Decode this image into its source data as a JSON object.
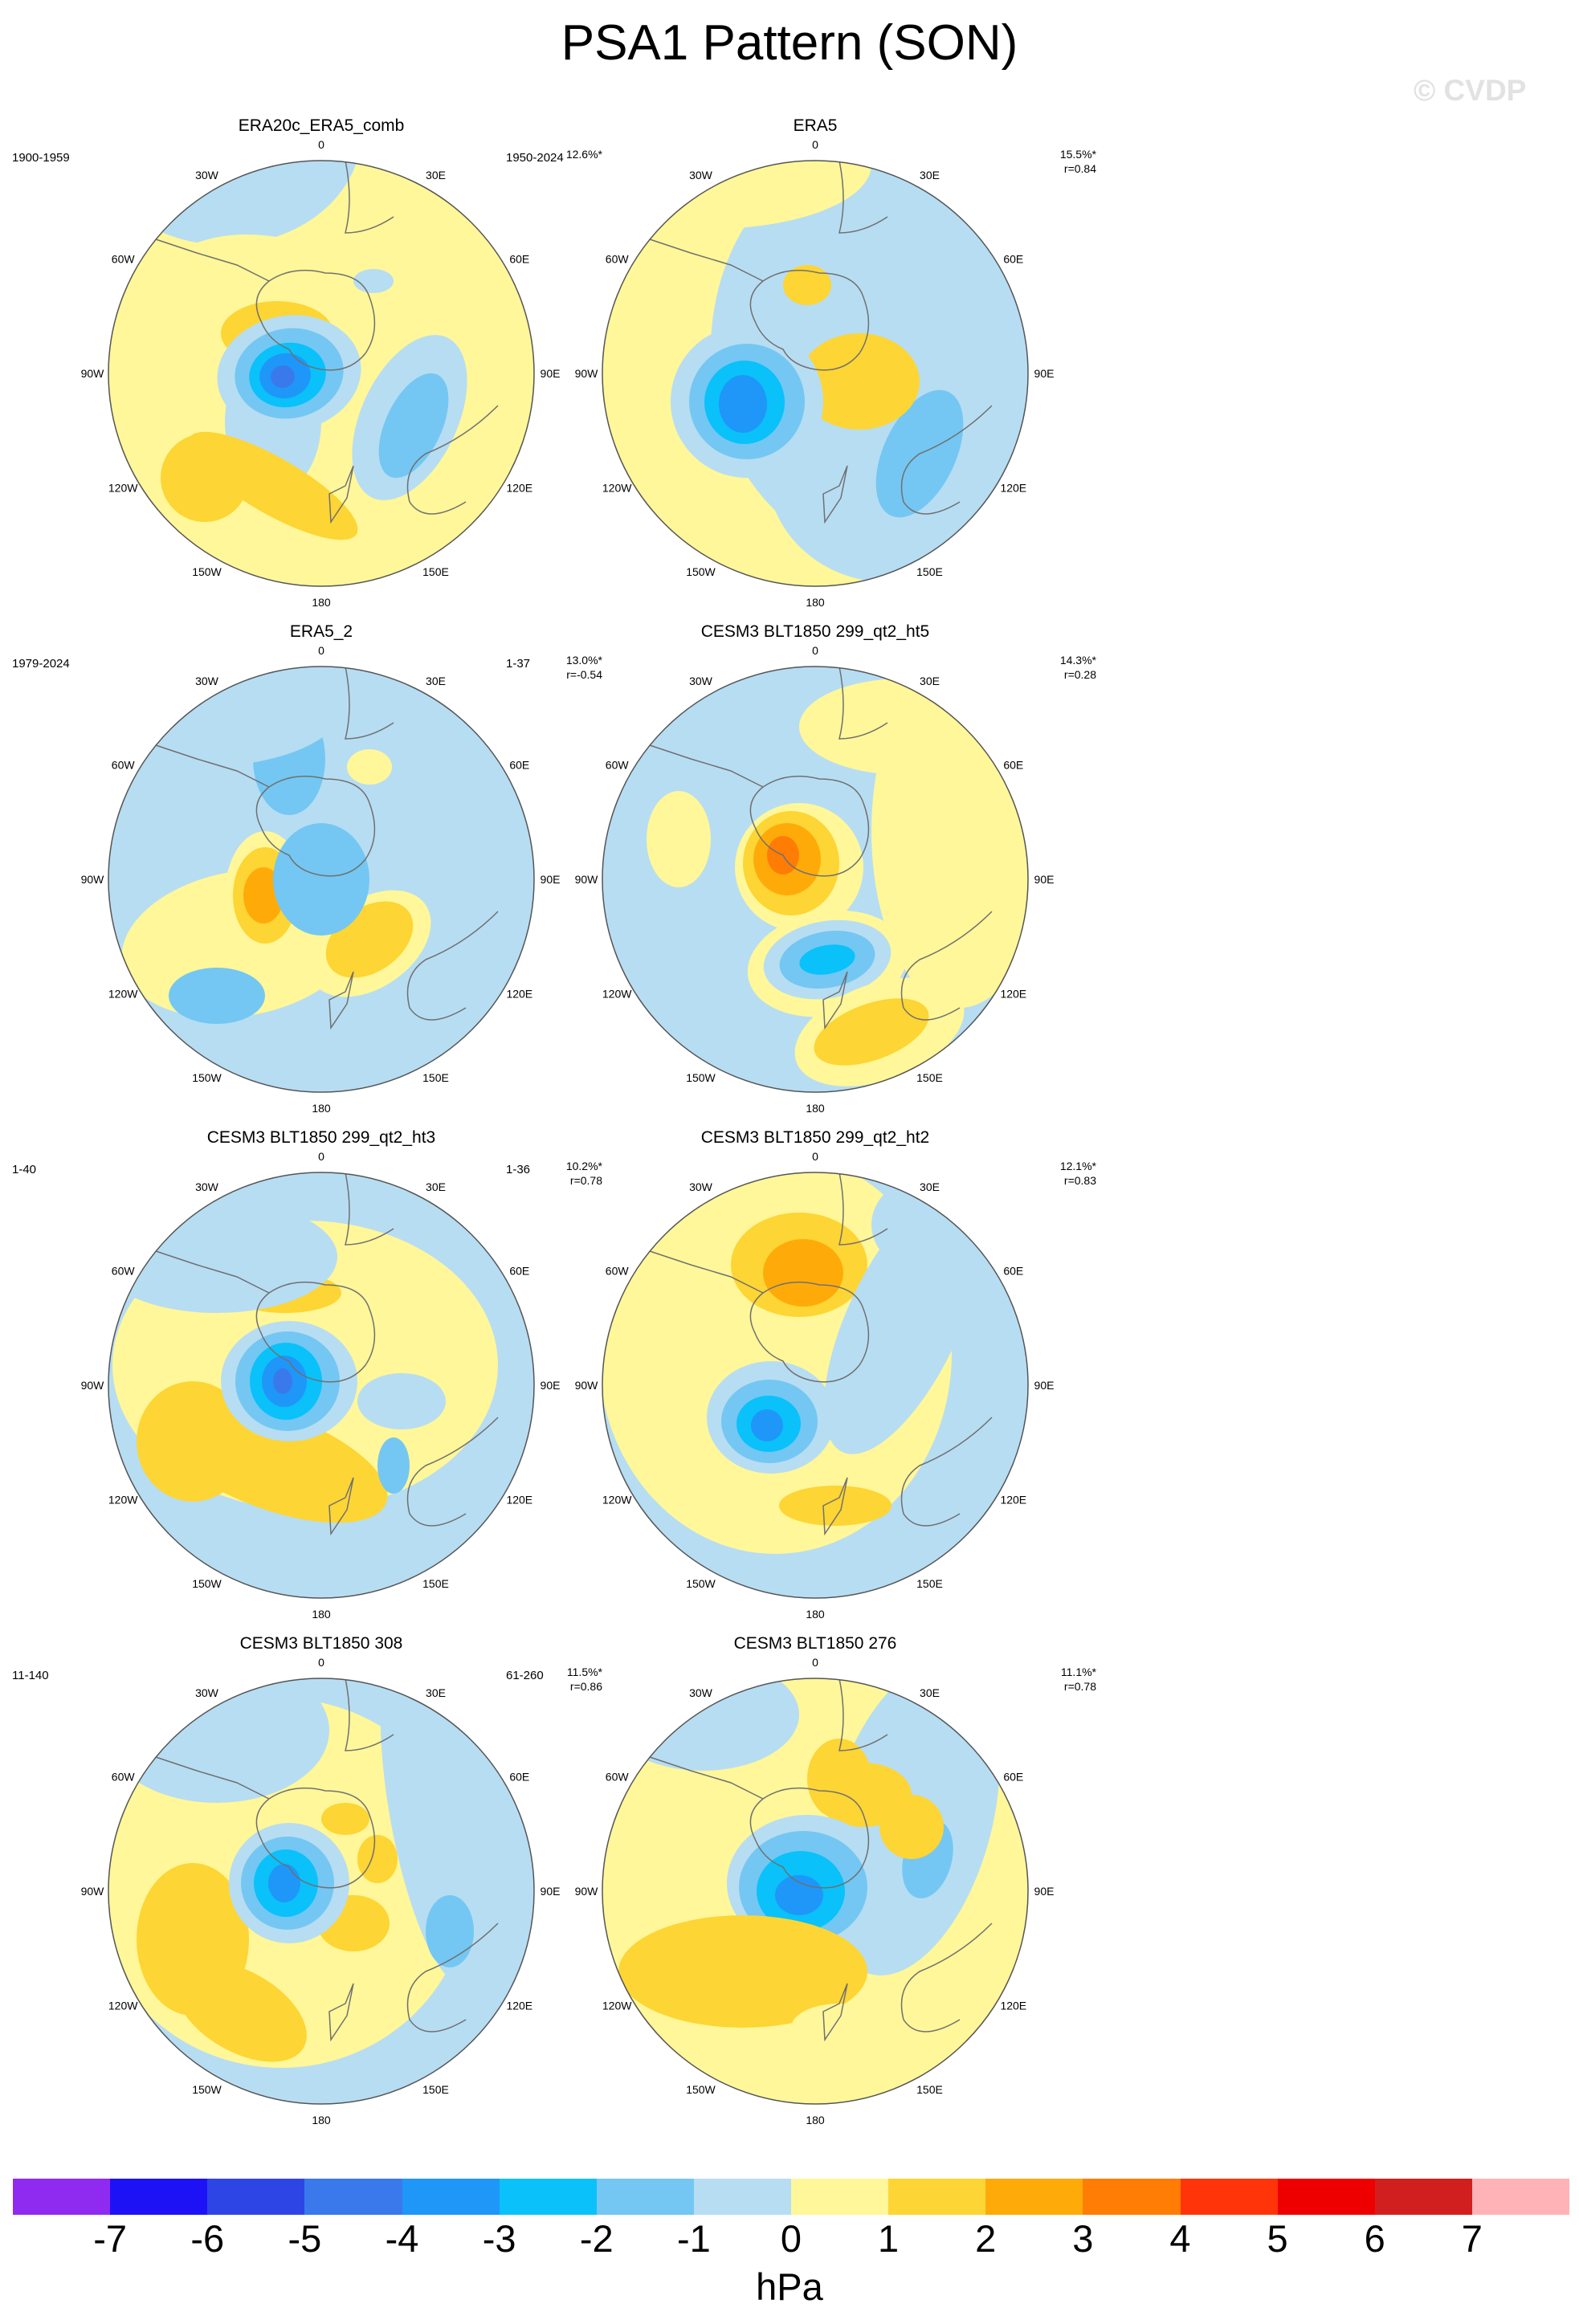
{
  "title": "PSA1 Pattern (SON)",
  "watermark": "© CVDP",
  "units": "hPa",
  "lon_labels": [
    "0",
    "30E",
    "60E",
    "90E",
    "120E",
    "150E",
    "180",
    "150W",
    "120W",
    "90W",
    "60W",
    "30W"
  ],
  "colorbar": {
    "labels": [
      "-7",
      "-6",
      "-5",
      "-4",
      "-3",
      "-2",
      "-1",
      "0",
      "1",
      "2",
      "3",
      "4",
      "5",
      "6",
      "7"
    ],
    "colors": [
      "#8f2bf0",
      "#1d12f5",
      "#2e45e6",
      "#3a79ec",
      "#1e97f9",
      "#0ac1fa",
      "#74c7f2",
      "#b7ddf3",
      "#fff799",
      "#fdd534",
      "#feab0a",
      "#ff7c05",
      "#ff3408",
      "#ee0000",
      "#d11f1f",
      "#ffb3b7"
    ]
  },
  "panels": [
    {
      "title": "ERA20c_ERA5_comb",
      "years": "1900-1959",
      "pct": "12.6%*",
      "r": ""
    },
    {
      "title": "ERA5",
      "years": "1950-2024",
      "pct": "15.5%*",
      "r": "r=0.84"
    },
    {
      "title": "ERA5_2",
      "years": "1979-2024",
      "pct": "13.0%*",
      "r": "r=-0.54"
    },
    {
      "title": "CESM3 BLT1850 299_qt2_ht5",
      "years": "1-37",
      "pct": "14.3%*",
      "r": "r=0.28"
    },
    {
      "title": "CESM3 BLT1850 299_qt2_ht3",
      "years": "1-40",
      "pct": "10.2%*",
      "r": "r=0.78"
    },
    {
      "title": "CESM3 BLT1850 299_qt2_ht2",
      "years": "1-36",
      "pct": "12.1%*",
      "r": "r=0.83"
    },
    {
      "title": "CESM3 BLT1850 308",
      "years": "11-140",
      "pct": "11.5%*",
      "r": "r=0.86"
    },
    {
      "title": "CESM3 BLT1850 276",
      "years": "61-260",
      "pct": "11.1%*",
      "r": "r=0.78"
    }
  ]
}
